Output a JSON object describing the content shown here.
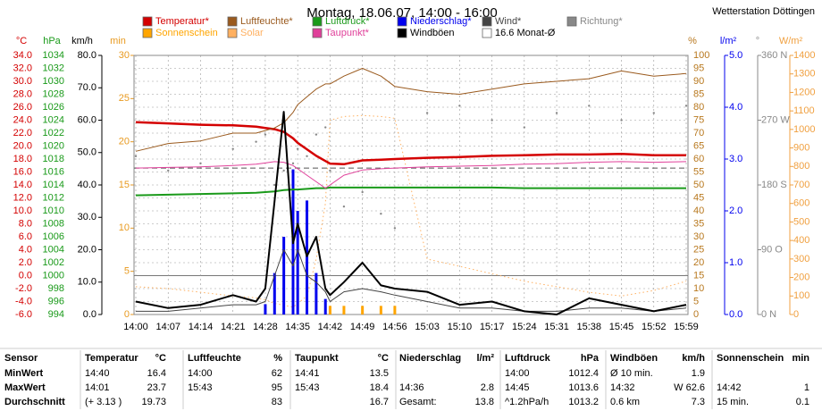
{
  "chart_data": {
    "type": "weather",
    "title": "Montag, 18.06.07, 14:00 - 16:00",
    "station": "Wetterstation Döttingen",
    "x": [
      "14:00",
      "14:07",
      "14:14",
      "14:21",
      "14:26",
      "14:28",
      "14:30",
      "14:32",
      "14:34",
      "14:35",
      "14:37",
      "14:39",
      "14:41",
      "14:42",
      "14:45",
      "14:49",
      "14:53",
      "14:56",
      "15:03",
      "15:10",
      "15:17",
      "15:24",
      "15:31",
      "15:38",
      "15:45",
      "15:52",
      "15:59"
    ],
    "xlim": [
      "14:00",
      "15:59"
    ],
    "xticks": [
      "14:00",
      "14:07",
      "14:14",
      "14:21",
      "14:28",
      "14:35",
      "14:42",
      "14:49",
      "14:56",
      "15:03",
      "15:10",
      "15:17",
      "15:24",
      "15:31",
      "15:38",
      "15:45",
      "15:52",
      "15:59"
    ],
    "axes": [
      {
        "id": "c",
        "label": "°C",
        "color": "#d40000",
        "lim": [
          -6,
          34
        ],
        "ticks": [
          {
            "value": -6,
            "label": "-6.0"
          },
          {
            "value": -4,
            "label": "-4.0"
          },
          {
            "value": -2,
            "label": "-2.0"
          },
          {
            "value": 0,
            "label": "0.0"
          },
          {
            "value": 2,
            "label": "2.0"
          },
          {
            "value": 4,
            "label": "4.0"
          },
          {
            "value": 6,
            "label": "6.0"
          },
          {
            "value": 8,
            "label": "8.0"
          },
          {
            "value": 10,
            "label": "10.0"
          },
          {
            "value": 12,
            "label": "12.0"
          },
          {
            "value": 14,
            "label": "14.0"
          },
          {
            "value": 16,
            "label": "16.0"
          },
          {
            "value": 18,
            "label": "18.0"
          },
          {
            "value": 20,
            "label": "20.0"
          },
          {
            "value": 22,
            "label": "22.0"
          },
          {
            "value": 24,
            "label": "24.0"
          },
          {
            "value": 26,
            "label": "26.0"
          },
          {
            "value": 28,
            "label": "28.0"
          },
          {
            "value": 30,
            "label": "30.0"
          },
          {
            "value": 32,
            "label": "32.0"
          },
          {
            "value": 34,
            "label": "34.0"
          }
        ]
      },
      {
        "id": "h",
        "label": "hPa",
        "color": "#1a9a1a",
        "lim": [
          994,
          1034
        ],
        "ticks": [
          994,
          996,
          998,
          1000,
          1002,
          1004,
          1006,
          1008,
          1010,
          1012,
          1014,
          1016,
          1018,
          1020,
          1022,
          1024,
          1026,
          1028,
          1030,
          1032,
          1034
        ]
      },
      {
        "id": "k",
        "label": "km/h",
        "color": "#000000",
        "lim": [
          0,
          80
        ],
        "ticks": [
          {
            "value": 0,
            "label": "0.0"
          },
          {
            "value": 10,
            "label": "10.0"
          },
          {
            "value": 20,
            "label": "20.0"
          },
          {
            "value": 30,
            "label": "30.0"
          },
          {
            "value": 40,
            "label": "40.0"
          },
          {
            "value": 50,
            "label": "50.0"
          },
          {
            "value": 60,
            "label": "60.0"
          },
          {
            "value": 70,
            "label": "70.0"
          },
          {
            "value": 80,
            "label": "80.0"
          }
        ]
      },
      {
        "id": "m",
        "label": "min",
        "color": "#e89a20",
        "lim": [
          0,
          30
        ],
        "ticks": [
          0,
          5,
          10,
          15,
          20,
          25,
          30
        ]
      },
      {
        "id": "p",
        "label": "%",
        "color": "#b8781e",
        "lim": [
          0,
          100
        ],
        "grid": true,
        "ticks": [
          0,
          5,
          10,
          15,
          20,
          25,
          30,
          35,
          40,
          45,
          50,
          55,
          60,
          65,
          70,
          75,
          80,
          85,
          90,
          95,
          100
        ]
      },
      {
        "id": "r",
        "label": "l/m²",
        "color": "#0000ee",
        "lim": [
          0,
          5
        ],
        "ticks": [
          {
            "value": 0,
            "label": "0.0"
          },
          {
            "value": 1,
            "label": "1.0"
          },
          {
            "value": 2,
            "label": "2.0"
          },
          {
            "value": 3,
            "label": "3.0"
          },
          {
            "value": 4,
            "label": "4.0"
          },
          {
            "value": 5,
            "label": "5.0"
          }
        ]
      },
      {
        "id": "d",
        "label": "°",
        "color": "#888888",
        "lim": [
          0,
          360
        ],
        "ticks": [
          {
            "value": 0,
            "label": "0 N"
          },
          {
            "value": 90,
            "label": "90 O"
          },
          {
            "value": 180,
            "label": "180 S"
          },
          {
            "value": 270,
            "label": "270 W"
          },
          {
            "value": 360,
            "label": "360 N"
          }
        ]
      },
      {
        "id": "w",
        "label": "W/m²",
        "color": "#f0a040",
        "lim": [
          0,
          1400
        ],
        "ticks": [
          0,
          100,
          200,
          300,
          400,
          500,
          600,
          700,
          800,
          900,
          1000,
          1100,
          1200,
          1300,
          1400
        ]
      }
    ],
    "series": [
      {
        "name": "Temperatur*",
        "color": "#d40000",
        "axis": "c",
        "mark": "line",
        "width": 2.5,
        "values": [
          23.7,
          23.5,
          23.3,
          23.2,
          23.0,
          22.8,
          22.6,
          22.2,
          21.2,
          20.5,
          19.5,
          18.5,
          17.7,
          17.3,
          17.2,
          17.8,
          17.9,
          18.0,
          18.2,
          18.3,
          18.5,
          18.6,
          18.7,
          18.7,
          18.8,
          18.6,
          18.6
        ]
      },
      {
        "name": "Luftfeuchte*",
        "color": "#9a5a1e",
        "axis": "p",
        "mark": "line",
        "width": 1,
        "values": [
          63,
          66,
          67,
          70,
          70,
          71,
          72,
          74,
          78,
          81,
          84,
          87,
          89,
          89,
          92,
          95,
          92,
          88,
          86,
          85,
          87,
          89,
          90,
          91,
          94,
          92,
          93
        ]
      },
      {
        "name": "Luftdruck*",
        "color": "#1a9a1a",
        "axis": "h",
        "mark": "line",
        "width": 2,
        "values": [
          1012.4,
          1012.5,
          1012.6,
          1012.7,
          1012.8,
          1012.9,
          1013.0,
          1013.2,
          1013.3,
          1013.3,
          1013.4,
          1013.5,
          1013.5,
          1013.6,
          1013.6,
          1013.6,
          1013.6,
          1013.6,
          1013.6,
          1013.6,
          1013.6,
          1013.5,
          1013.5,
          1013.5,
          1013.5,
          1013.5,
          1013.5
        ]
      },
      {
        "name": "Niederschlag*",
        "color": "#0000ee",
        "axis": "r",
        "mark": "bar",
        "values": [
          0,
          0,
          0,
          0,
          0,
          0.2,
          0.8,
          1.5,
          2.8,
          2.0,
          2.2,
          0.8,
          0.3,
          0,
          0,
          0,
          0,
          0,
          0,
          0,
          0,
          0,
          0,
          0,
          0,
          0,
          0
        ]
      },
      {
        "name": "Wind*",
        "color": "#444444",
        "axis": "k",
        "mark": "line",
        "width": 1,
        "values": [
          1,
          1,
          2,
          3,
          3,
          4,
          12,
          20,
          15,
          20,
          12,
          10,
          7,
          4,
          7,
          8,
          7,
          6,
          4,
          2,
          2,
          1,
          1,
          2,
          2,
          1,
          2
        ]
      },
      {
        "name": "Richtung*",
        "color": "#888888",
        "axis": "d",
        "mark": "dots",
        "values": [
          220,
          200,
          210,
          230,
          240,
          250,
          180,
          200,
          210,
          230,
          220,
          250,
          260,
          200,
          150,
          170,
          140,
          120,
          280,
          290,
          270,
          260,
          280,
          290,
          270,
          280,
          290
        ]
      },
      {
        "name": "Sonnenschein",
        "color": "#ffa500",
        "axis": "m",
        "mark": "bar",
        "values": [
          0,
          0,
          0,
          0,
          0,
          0,
          0,
          0,
          0,
          0,
          0,
          0,
          0,
          1,
          1,
          1,
          1,
          1,
          0,
          0,
          0,
          0,
          0,
          0,
          0,
          0,
          0
        ]
      },
      {
        "name": "Solar",
        "color": "#ffb060",
        "axis": "w",
        "mark": "dotted",
        "width": 1,
        "values": [
          150,
          140,
          120,
          100,
          90,
          80,
          60,
          50,
          40,
          60,
          100,
          300,
          600,
          1050,
          1070,
          1075,
          1070,
          1060,
          300,
          260,
          220,
          180,
          150,
          120,
          100,
          130,
          180
        ]
      },
      {
        "name": "Taupunkt*",
        "color": "#e0409a",
        "axis": "c",
        "mark": "line",
        "width": 1,
        "values": [
          16.6,
          16.7,
          16.8,
          17.0,
          17.2,
          17.4,
          17.6,
          17.5,
          17.0,
          16.5,
          15.5,
          14.5,
          13.5,
          14.0,
          15.5,
          16.3,
          16.5,
          16.6,
          16.8,
          16.9,
          17.0,
          17.2,
          17.3,
          17.5,
          17.6,
          17.5,
          17.6
        ]
      },
      {
        "name": "Windböen",
        "color": "#000000",
        "axis": "k",
        "mark": "line",
        "width": 2,
        "values": [
          4,
          2,
          3,
          6,
          4,
          8,
          35,
          62.6,
          22,
          28,
          18,
          24,
          8,
          6,
          10,
          16,
          9,
          8,
          7,
          3,
          4,
          1,
          0,
          5,
          3,
          1,
          3
        ]
      },
      {
        "name": "16.6 Monat-Ø",
        "color": "#ffffff",
        "axis": "c",
        "mark": "reference",
        "value": 16.6
      }
    ]
  },
  "table": {
    "header": [
      "Sensor",
      "Temperatur",
      "°C",
      "Luftfeuchte",
      "%",
      "Taupunkt",
      "°C",
      "Niederschlag",
      "l/m²",
      "Luftdruck",
      "hPa",
      "Windböen",
      "km/h",
      "Sonnenschein",
      "min"
    ],
    "rows": [
      [
        "MinWert",
        "14:40",
        "16.4",
        "14:00",
        "62",
        "14:41",
        "13.5",
        null,
        null,
        "14:00",
        "1012.4",
        "Ø 10 min.",
        "1.9",
        null,
        null
      ],
      [
        "MaxWert",
        "14:01",
        "23.7",
        "15:43",
        "95",
        "15:43",
        "18.4",
        "14:36",
        "2.8",
        "14:45",
        "1013.6",
        "14:32",
        "W 62.6",
        "14:42",
        "1"
      ],
      [
        "Durchschnitt",
        "(+ 3.13 )",
        "19.73",
        null,
        "83",
        null,
        "16.7",
        "Gesamt:",
        "13.8",
        "^1.2hPa/h",
        "1013.2",
        "0.6 km",
        "7.3",
        "15 min.",
        "0.1"
      ]
    ]
  }
}
